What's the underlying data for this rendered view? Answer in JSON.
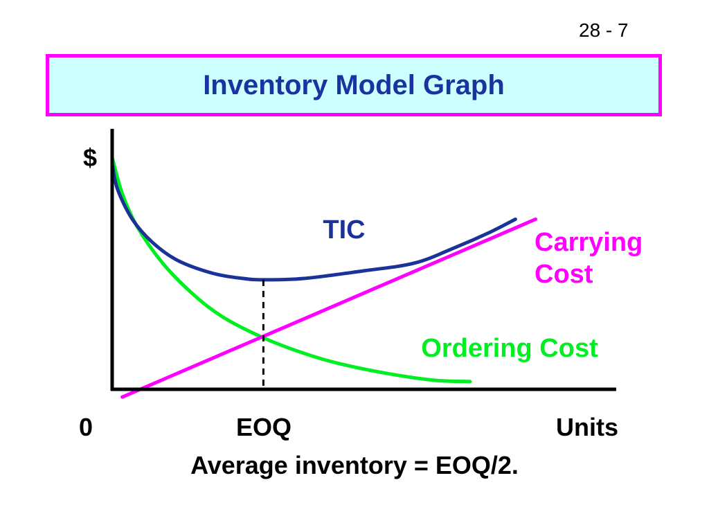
{
  "slide_number": "28 - 7",
  "title": "Inventory Model Graph",
  "colors": {
    "title_text": "#1a33a0",
    "title_bg": "#ccffff",
    "title_border": "#ff00ff",
    "tic": "#1a3399",
    "carrying": "#ff00ff",
    "ordering": "#00ee22",
    "axis": "#000000"
  },
  "chart_data": {
    "type": "line",
    "title": "",
    "ylabel": "$",
    "xlabel": "Units",
    "x_tick_labels": [
      "0",
      "EOQ"
    ],
    "xlim": [
      0,
      1
    ],
    "ylim": [
      0,
      1
    ],
    "eoq_x": 0.3,
    "series": [
      {
        "name": "TIC",
        "color": "#1a3399",
        "x": [
          0.0,
          0.01,
          0.04,
          0.08,
          0.13,
          0.2,
          0.26,
          0.3,
          0.38,
          0.5,
          0.6,
          0.68,
          0.75,
          0.8
        ],
        "y": [
          0.88,
          0.78,
          0.66,
          0.57,
          0.5,
          0.45,
          0.43,
          0.425,
          0.43,
          0.46,
          0.49,
          0.55,
          0.61,
          0.66
        ]
      },
      {
        "name": "Carrying Cost",
        "color": "#ff00ff",
        "x": [
          0.02,
          0.84
        ],
        "y": [
          -0.03,
          0.66
        ]
      },
      {
        "name": "Ordering Cost",
        "color": "#00ee22",
        "x": [
          0.0,
          0.02,
          0.05,
          0.1,
          0.16,
          0.22,
          0.3,
          0.38,
          0.45,
          0.55,
          0.64,
          0.71
        ],
        "y": [
          0.9,
          0.76,
          0.63,
          0.49,
          0.37,
          0.28,
          0.2,
          0.14,
          0.1,
          0.06,
          0.035,
          0.03
        ]
      }
    ]
  },
  "labels": {
    "tic": "TIC",
    "carrying_line1": "Carrying",
    "carrying_line2": "Cost",
    "ordering": "Ordering Cost",
    "y_axis": "$",
    "x_zero": "0",
    "x_eoq": "EOQ",
    "x_units": "Units",
    "caption": "Average inventory = EOQ/2."
  }
}
